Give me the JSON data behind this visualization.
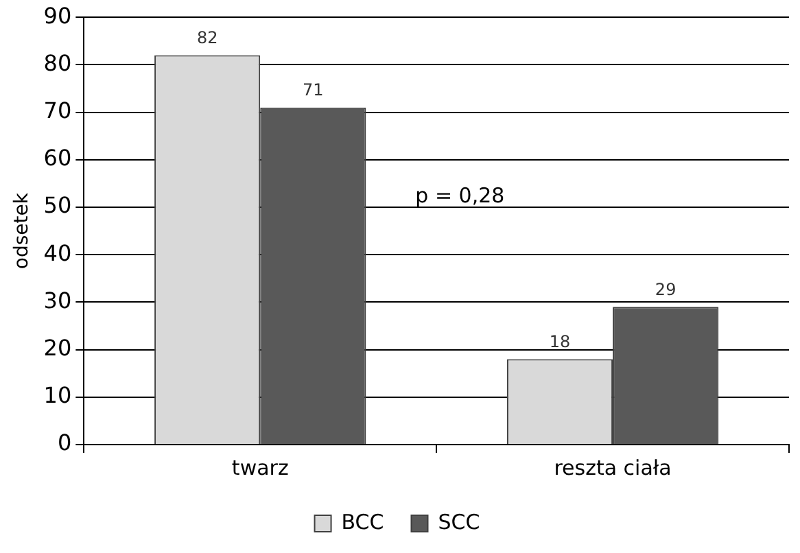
{
  "chart_data": {
    "type": "bar",
    "ylabel": "odsetek",
    "categories": [
      "twarz",
      "reszta ciała"
    ],
    "series": [
      {
        "name": "BCC",
        "color": "#d9d9d9",
        "values": [
          82,
          18
        ]
      },
      {
        "name": "SCC",
        "color": "#595959",
        "values": [
          71,
          29
        ]
      }
    ],
    "ylim": [
      0,
      90
    ],
    "yticks": [
      0,
      10,
      20,
      30,
      40,
      50,
      60,
      70,
      80,
      90
    ],
    "grid": "y",
    "legend": "bottom",
    "data_labels": true,
    "annotations": [
      "p = 0,28"
    ]
  }
}
